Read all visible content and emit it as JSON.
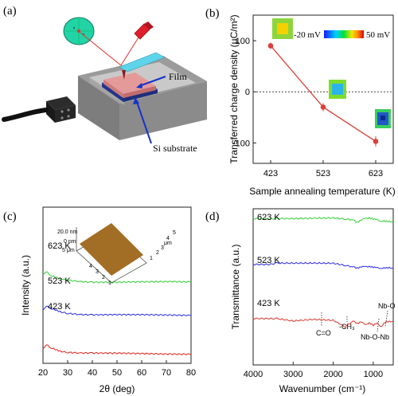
{
  "panels": {
    "a": {
      "label": "(a)",
      "annotations": [
        "Film",
        "Si substrate"
      ]
    },
    "b": {
      "label": "(b)"
    },
    "c": {
      "label": "(c)"
    },
    "d": {
      "label": "(d)"
    }
  },
  "colors": {
    "b_line": "#d9413a",
    "c_623": "#2fcf35",
    "c_523": "#2c2ce0",
    "c_423": "#e2231a",
    "d_623": "#2fcf35",
    "d_523": "#2c2ce0",
    "d_423": "#d9362f"
  },
  "chart_data": [
    {
      "panel": "b",
      "type": "scatter",
      "xlabel": "Sample annealing temperature (K)",
      "ylabel": "Transferred charge density (μC/m²)",
      "categories": [
        "423",
        "523",
        "623"
      ],
      "yticks": [
        "100",
        "0",
        "-100"
      ],
      "ylim": [
        -140,
        150
      ],
      "points": [
        {
          "x": "423",
          "y": 90,
          "err": 6
        },
        {
          "x": "523",
          "y": -30,
          "err": 8
        },
        {
          "x": "623",
          "y": -97,
          "err": 10
        }
      ],
      "reference_line": 0,
      "colorbar": {
        "min_label": "-20 mV",
        "max_label": "50 mV"
      },
      "marker": "filled circle with connecting line"
    },
    {
      "panel": "c",
      "type": "line",
      "xlabel": "2θ (deg)",
      "ylabel": "Intensity (a.u.)",
      "xticks": [
        "20",
        "30",
        "40",
        "50",
        "60",
        "70",
        "80"
      ],
      "xlim": [
        20,
        80
      ],
      "series": [
        {
          "name": "623 K",
          "x": [
            20,
            21,
            22,
            23,
            25,
            27,
            30,
            35,
            40,
            50,
            60,
            70,
            80
          ],
          "y": [
            3.05,
            3.5,
            3.3,
            2.95,
            2.6,
            2.4,
            2.25,
            2.12,
            2.05,
            2.0,
            2.0,
            2.0,
            2.0
          ]
        },
        {
          "name": "523 K",
          "x": [
            20,
            21,
            22,
            23,
            25,
            27,
            30,
            35,
            40,
            50,
            60,
            70,
            80
          ],
          "y": [
            1.85,
            2.3,
            2.2,
            1.95,
            1.7,
            1.5,
            1.35,
            1.2,
            1.12,
            1.08,
            1.06,
            1.05,
            1.05
          ]
        },
        {
          "name": "423 K",
          "x": [
            20,
            21,
            22,
            23,
            25,
            27,
            30,
            35,
            40,
            50,
            60,
            70,
            80
          ],
          "y": [
            0.75,
            1.2,
            1.05,
            0.8,
            0.55,
            0.4,
            0.25,
            0.12,
            0.06,
            0.02,
            0.01,
            0.0,
            0.0
          ]
        }
      ],
      "inset": {
        "z_label": "20.0 nm",
        "z_zero": "0 nm",
        "scale_label": "5 μm",
        "axis_ticks": [
          "1",
          "2",
          "3",
          "4",
          "5"
        ],
        "axis_unit": "μm"
      }
    },
    {
      "panel": "d",
      "type": "line",
      "xlabel": "Wavenumber (cm⁻¹)",
      "ylabel": "Transmittance (a.u.)",
      "xticks": [
        "4000",
        "3000",
        "2000",
        "1000"
      ],
      "xlim": [
        4000,
        500
      ],
      "series": [
        {
          "name": "623 K",
          "x": [
            4000,
            3600,
            3400,
            3000,
            2500,
            2000,
            1700,
            1500,
            1400,
            1300,
            1200,
            1100,
            1000,
            900,
            800,
            700,
            600,
            500
          ],
          "y": [
            2.55,
            2.55,
            2.6,
            2.55,
            2.55,
            2.58,
            2.5,
            2.45,
            2.2,
            2.45,
            2.5,
            2.6,
            2.5,
            2.45,
            2.35,
            2.3,
            2.2,
            2.2
          ]
        },
        {
          "name": "523 K",
          "x": [
            4000,
            3600,
            3400,
            3000,
            2500,
            2000,
            1700,
            1500,
            1400,
            1300,
            1200,
            1100,
            1000,
            900,
            800,
            700,
            600,
            500
          ],
          "y": [
            1.55,
            1.55,
            1.65,
            1.6,
            1.6,
            1.62,
            1.45,
            1.3,
            1.15,
            1.25,
            1.2,
            1.3,
            1.25,
            1.2,
            1.15,
            1.1,
            1.1,
            1.1
          ]
        },
        {
          "name": "423 K",
          "x": [
            4000,
            3600,
            3400,
            3000,
            2500,
            2000,
            1700,
            1500,
            1400,
            1300,
            1200,
            1100,
            1000,
            900,
            800,
            700,
            600,
            500
          ],
          "y": [
            0.9,
            0.85,
            0.8,
            0.55,
            0.75,
            0.7,
            0.05,
            0.6,
            0.3,
            0.5,
            0.15,
            0.45,
            0.2,
            0.35,
            0.0,
            0.4,
            0.5,
            0.6
          ]
        }
      ],
      "annotations": [
        "C=O",
        "-CH₃",
        "Nb-O",
        "Nb-O-Nb"
      ]
    }
  ]
}
